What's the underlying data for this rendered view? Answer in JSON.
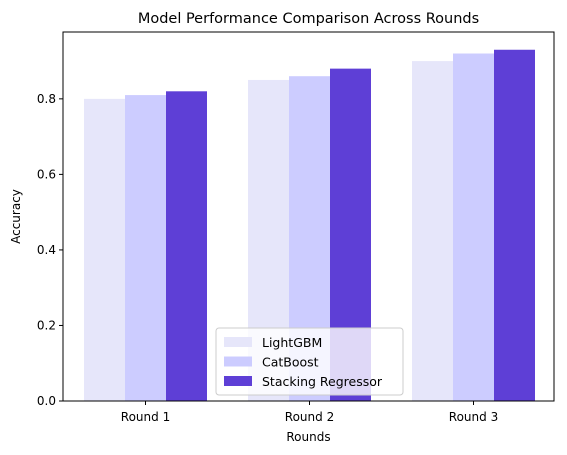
{
  "chart_data": {
    "type": "bar",
    "title": "Model Performance Comparison Across Rounds",
    "xlabel": "Rounds",
    "ylabel": "Accuracy",
    "categories": [
      "Round 1",
      "Round 2",
      "Round 3"
    ],
    "series": [
      {
        "name": "LightGBM",
        "values": [
          0.8,
          0.85,
          0.9
        ],
        "color": "#e6e6fa"
      },
      {
        "name": "CatBoost",
        "values": [
          0.81,
          0.86,
          0.92
        ],
        "color": "#ccccff"
      },
      {
        "name": "Stacking Regressor",
        "values": [
          0.82,
          0.88,
          0.93
        ],
        "color": "#5e3fd6"
      }
    ],
    "ylim": [
      0,
      0.977
    ],
    "yticks": [
      "0.0",
      "0.2",
      "0.4",
      "0.6",
      "0.8"
    ],
    "grid": false,
    "legend_position": "lower center"
  }
}
